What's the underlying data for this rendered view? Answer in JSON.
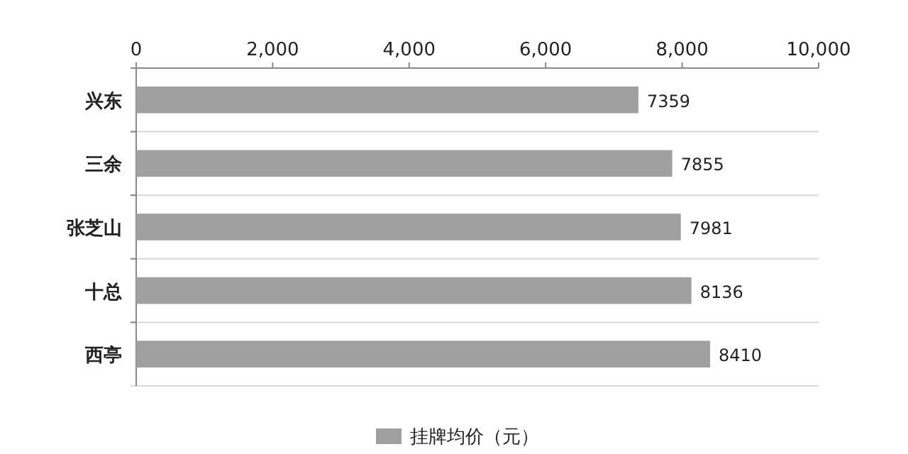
{
  "chart_data": {
    "type": "bar",
    "orientation": "horizontal",
    "categories": [
      "兴东",
      "三余",
      "张芝山",
      "十总",
      "西亭"
    ],
    "series": [
      {
        "name": "挂牌均价（元）",
        "color": "#a0a0a0",
        "values": [
          7359,
          7855,
          7981,
          8136,
          8410
        ]
      }
    ],
    "xlim": [
      0,
      10000
    ],
    "xticks": [
      {
        "value": 0,
        "label": "0"
      },
      {
        "value": 2000,
        "label": "2,000"
      },
      {
        "value": 4000,
        "label": "4,000"
      },
      {
        "value": 6000,
        "label": "6,000"
      },
      {
        "value": 8000,
        "label": "8,000"
      },
      {
        "value": 10000,
        "label": "10,000"
      }
    ],
    "data_labels": true,
    "grid": "y",
    "legend": "bottom"
  }
}
